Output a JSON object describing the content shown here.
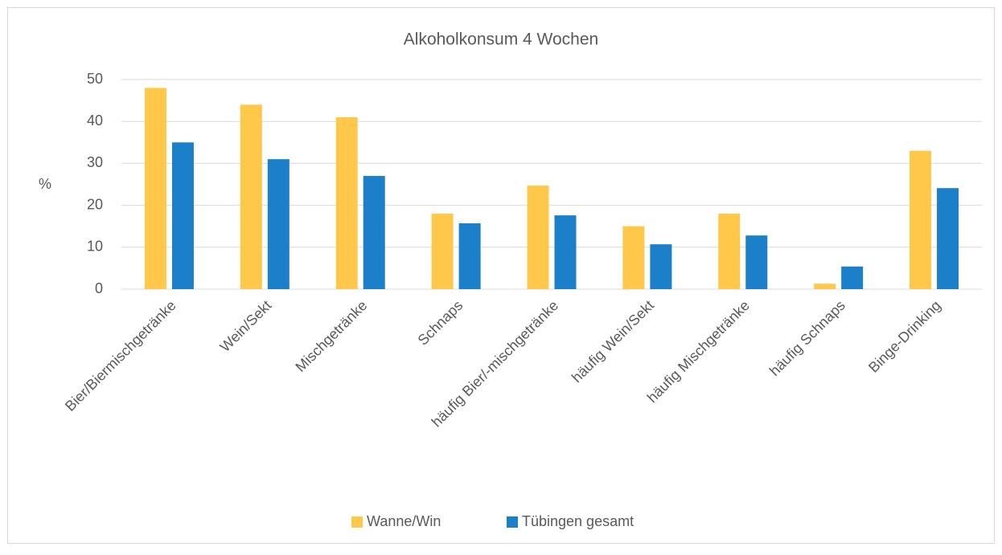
{
  "chart_data": {
    "type": "bar",
    "title": "Alkoholkonsum 4 Wochen",
    "y_label": "%",
    "categories": [
      "Bier/Biermischgetränke",
      "Wein/Sekt",
      "Mischgetränke",
      "Schnaps",
      "häufig Bier/-mischgetränke",
      "häufig Wein/Sekt",
      "häufig Mischgetränke",
      "häufig Schnaps",
      "Binge-Drinking"
    ],
    "series": [
      {
        "name": "Wanne/Win",
        "color": "#ffc84b",
        "values": [
          48,
          44,
          41,
          18,
          24.7,
          15,
          18,
          1.3,
          33
        ]
      },
      {
        "name": "Tübingen gesamt",
        "color": "#1b7fc9",
        "values": [
          35,
          31,
          27,
          15.7,
          17.6,
          10.7,
          12.8,
          5.4,
          24.1
        ]
      }
    ],
    "ylim": [
      0,
      50
    ],
    "yticks": [
      0,
      10,
      20,
      30,
      40,
      50
    ],
    "grid": true,
    "legend": "bottom"
  }
}
